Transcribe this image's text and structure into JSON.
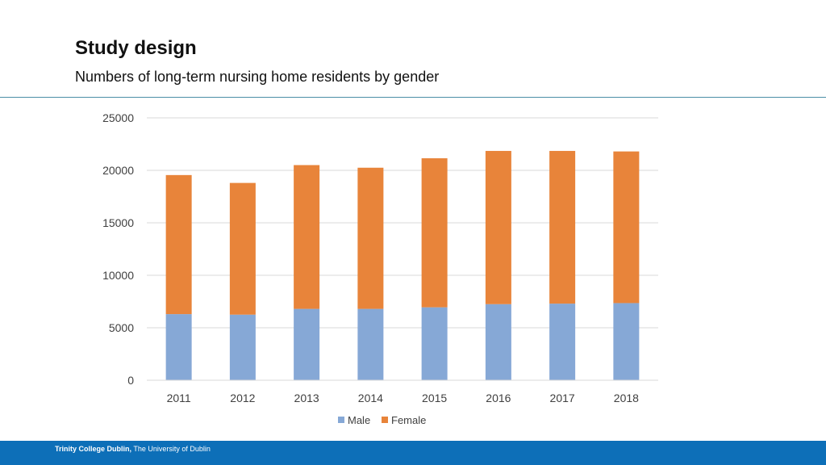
{
  "slide": {
    "title": "Study design",
    "subtitle": "Numbers of long-term nursing home residents by gender"
  },
  "footer": {
    "institution": "Trinity College Dublin,",
    "university": "The University of Dublin"
  },
  "chart_data": {
    "type": "bar",
    "stacked": true,
    "categories": [
      "2011",
      "2012",
      "2013",
      "2014",
      "2015",
      "2016",
      "2017",
      "2018"
    ],
    "series": [
      {
        "name": "Male",
        "color": "#86a8d6",
        "values": [
          6300,
          6250,
          6800,
          6800,
          6950,
          7250,
          7300,
          7350
        ]
      },
      {
        "name": "Female",
        "color": "#e8843a",
        "values": [
          13250,
          12550,
          13700,
          13450,
          14200,
          14600,
          14550,
          14450
        ]
      }
    ],
    "ylim": [
      0,
      25000
    ],
    "yticks": [
      "0",
      "5000",
      "10000",
      "15000",
      "20000",
      "25000"
    ],
    "grid": true,
    "legend_position": "bottom"
  }
}
